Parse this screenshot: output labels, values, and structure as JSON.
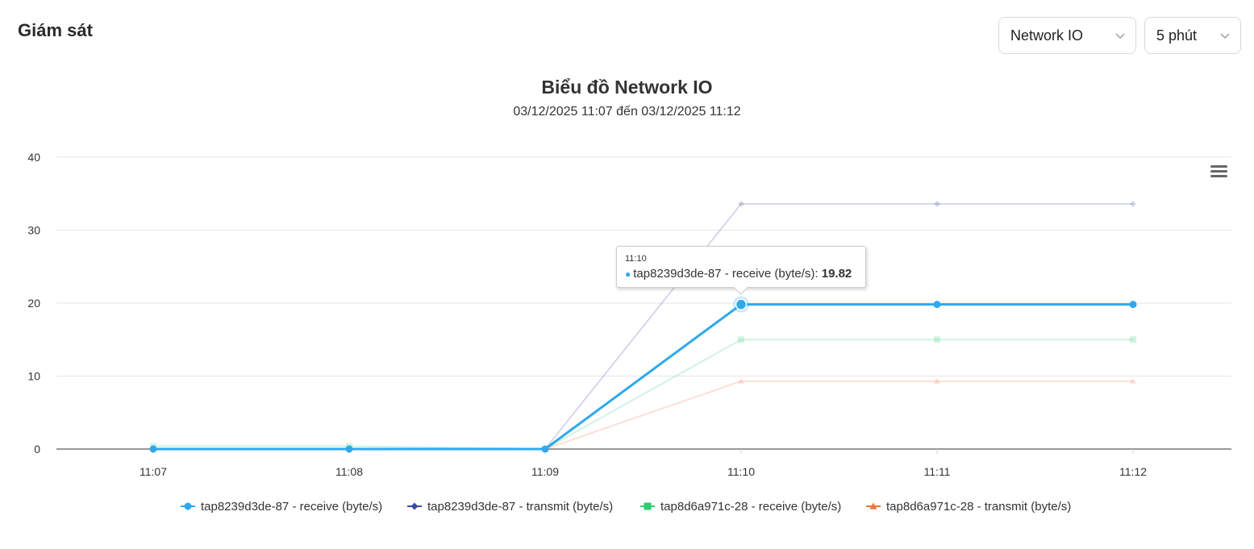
{
  "header": {
    "title": "Giám sát"
  },
  "controls": {
    "metric": "Network IO",
    "range": "5 phút"
  },
  "chart_data": {
    "type": "line",
    "title": "Biểu đồ Network IO",
    "subtitle": "03/12/2025 11:07 đến 03/12/2025 11:12",
    "categories": [
      "11:07",
      "11:08",
      "11:09",
      "11:10",
      "11:11",
      "11:12"
    ],
    "ylim": [
      0,
      40
    ],
    "yticks": [
      0,
      10,
      20,
      30,
      40
    ],
    "grid": true,
    "legend_position": "bottom",
    "series": [
      {
        "name": "tap8239d3de-87 - receive (byte/s)",
        "color": "#2fa9ee",
        "marker": "circle",
        "values": [
          0,
          0,
          0,
          19.82,
          19.82,
          19.82
        ],
        "highlighted": true
      },
      {
        "name": "tap8239d3de-87 - transmit (byte/s)",
        "color": "#3c4d9e",
        "marker": "diamond",
        "values": [
          0,
          0,
          0,
          33.6,
          33.6,
          33.6
        ],
        "highlighted": false
      },
      {
        "name": "tap8d6a971c-28 - receive (byte/s)",
        "color": "#2ecc71",
        "marker": "square",
        "values": [
          0.4,
          0.4,
          0,
          15.0,
          15.0,
          15.0
        ],
        "highlighted": false
      },
      {
        "name": "tap8d6a971c-28 - transmit (byte/s)",
        "color": "#f0733f",
        "marker": "triangle",
        "values": [
          0,
          0,
          0,
          9.3,
          9.3,
          9.3
        ],
        "highlighted": false
      }
    ],
    "tooltip": {
      "time": "11:10",
      "series": "tap8239d3de-87 - receive (byte/s)",
      "label": "tap8239d3de-87 - receive (byte/s):",
      "value": "19.82"
    }
  }
}
